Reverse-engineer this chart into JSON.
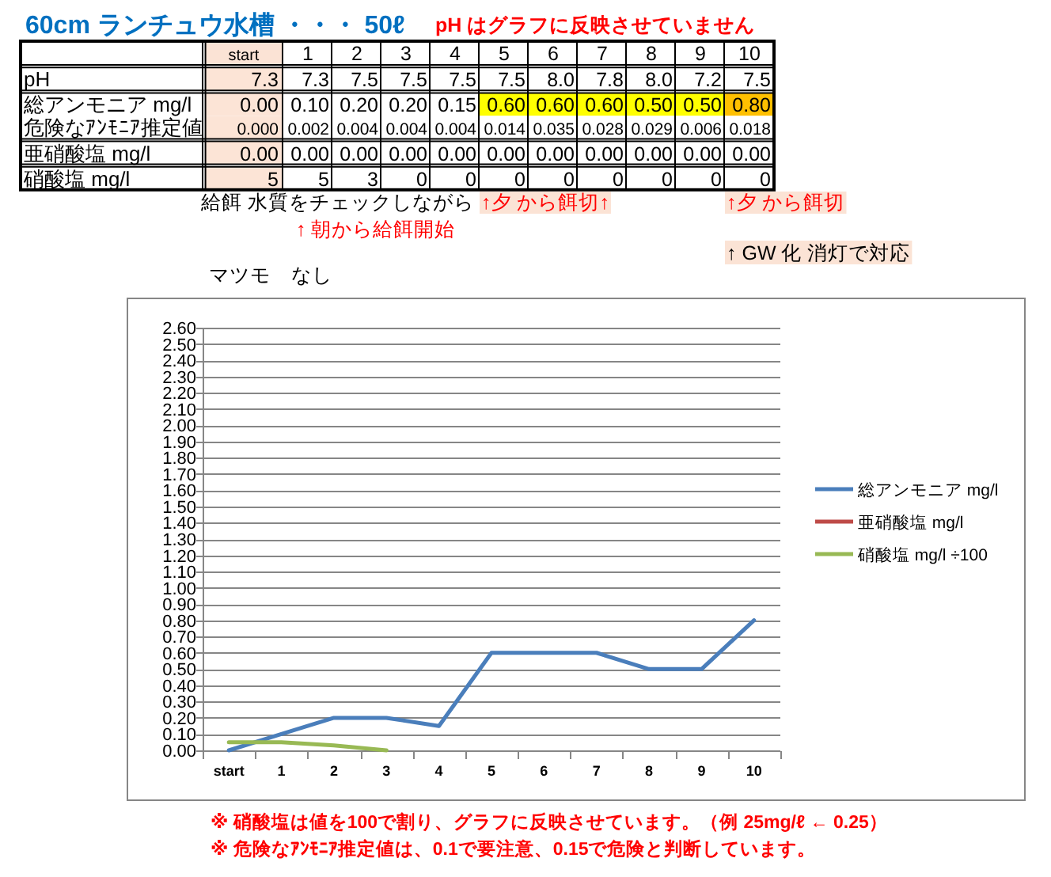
{
  "chart_data": [
    {
      "type": "heatmap",
      "title": "60cm ランチュウ水槽 ・・・ 50ℓ",
      "categories": [
        "start",
        "1",
        "2",
        "3",
        "4",
        "5",
        "6",
        "7",
        "8",
        "9",
        "10"
      ],
      "y_categories": [
        "pH",
        "総アンモニア mg/l",
        "危険なｱﾝﾓﾆｱ推定値",
        "亜硝酸塩 mg/l",
        "硝酸塩 mg/l"
      ],
      "cells": [
        [
          7.3,
          7.3,
          7.5,
          7.5,
          7.5,
          7.5,
          8.0,
          7.8,
          8.0,
          7.2,
          7.5
        ],
        [
          0,
          0.1,
          0.2,
          0.2,
          0.15,
          0.6,
          0.6,
          0.6,
          0.5,
          0.5,
          0.8
        ],
        [
          0,
          0.002,
          0.004,
          0.004,
          0.004,
          0.014,
          0.035,
          0.028,
          0.029,
          0.006,
          0.018
        ],
        [
          0,
          0,
          0,
          0,
          0,
          0,
          0,
          0,
          0,
          0,
          0
        ],
        [
          5,
          5,
          3,
          0,
          0,
          0,
          0,
          0,
          0,
          0,
          0
        ]
      ],
      "cell_labels": [
        [
          "7.3",
          "7.3",
          "7.5",
          "7.5",
          "7.5",
          "7.5",
          "8.0",
          "7.8",
          "8.0",
          "7.2",
          "7.5"
        ],
        [
          "0.00",
          "0.10",
          "0.20",
          "0.20",
          "0.15",
          "0.60",
          "0.60",
          "0.60",
          "0.50",
          "0.50",
          "0.80"
        ],
        [
          "0.000",
          "0.002",
          "0.004",
          "0.004",
          "0.004",
          "0.014",
          "0.035",
          "0.028",
          "0.029",
          "0.006",
          "0.018"
        ],
        [
          "0.00",
          "0.00",
          "0.00",
          "0.00",
          "0.00",
          "0.00",
          "0.00",
          "0.00",
          "0.00",
          "0.00",
          "0.00"
        ],
        [
          "5",
          "5",
          "3",
          "0",
          "0",
          "0",
          "0",
          "0",
          "0",
          "0",
          "0"
        ]
      ],
      "colors": [
        [
          "#fce4d6",
          "#ffffff",
          "#ffffff",
          "#ffffff",
          "#ffffff",
          "#ffffff",
          "#ffffff",
          "#ffffff",
          "#ffffff",
          "#ffffff",
          "#ffffff"
        ],
        [
          "#fce4d6",
          "#ffffff",
          "#ffffff",
          "#ffffff",
          "#ffffff",
          "#ffff00",
          "#ffff00",
          "#ffff00",
          "#ffff00",
          "#ffff00",
          "#ffc000"
        ],
        [
          "#fce4d6",
          "#ffffff",
          "#ffffff",
          "#ffffff",
          "#ffffff",
          "#ffffff",
          "#ffffff",
          "#ffffff",
          "#ffffff",
          "#ffffff",
          "#ffffff"
        ],
        [
          "#fce4d6",
          "#ffffff",
          "#ffffff",
          "#ffffff",
          "#ffffff",
          "#ffffff",
          "#ffffff",
          "#ffffff",
          "#ffffff",
          "#ffffff",
          "#ffffff"
        ],
        [
          "#fce4d6",
          "#ffffff",
          "#ffffff",
          "#ffffff",
          "#ffffff",
          "#ffffff",
          "#ffffff",
          "#ffffff",
          "#ffffff",
          "#ffffff",
          "#ffffff"
        ]
      ],
      "annotations": [
        "pH はグラフに反映させていません",
        "給餌 水質をチェックしながら",
        "↑夕 から餌切↑",
        "↑夕 から餌切",
        "↑ 朝から給餌開始",
        "↑ GW 化 消灯で対応",
        "マツモ　なし"
      ]
    },
    {
      "type": "line",
      "categories": [
        "start",
        "1",
        "2",
        "3",
        "4",
        "5",
        "6",
        "7",
        "8",
        "9",
        "10"
      ],
      "series": [
        {
          "name": "総アンモニア mg/l",
          "color": "#4a7ebb",
          "values": [
            0,
            0.1,
            0.2,
            0.2,
            0.15,
            0.6,
            0.6,
            0.6,
            0.5,
            0.5,
            0.8
          ]
        },
        {
          "name": "亜硝酸塩 mg/l",
          "color": "#be4b48",
          "values": [
            null,
            null,
            null,
            null,
            null,
            null,
            null,
            null,
            null,
            null,
            null
          ]
        },
        {
          "name": "硝酸塩 mg/l ÷100",
          "color": "#98b954",
          "values": [
            0.05,
            0.05,
            0.03,
            0,
            null,
            null,
            null,
            null,
            null,
            null,
            null
          ]
        }
      ],
      "ylim": [
        0,
        2.6
      ],
      "yticks": [
        {
          "value": 0,
          "label": "0.00"
        },
        {
          "value": 0.1,
          "label": "0.10"
        },
        {
          "value": 0.2,
          "label": "0.20"
        },
        {
          "value": 0.3,
          "label": "0.30"
        },
        {
          "value": 0.4,
          "label": "0.40"
        },
        {
          "value": 0.5,
          "label": "0.50"
        },
        {
          "value": 0.6,
          "label": "0.60"
        },
        {
          "value": 0.7,
          "label": "0.70"
        },
        {
          "value": 0.8,
          "label": "0.80"
        },
        {
          "value": 0.9,
          "label": "0.90"
        },
        {
          "value": 1.0,
          "label": "1.00"
        },
        {
          "value": 1.1,
          "label": "1.10"
        },
        {
          "value": 1.2,
          "label": "1.20"
        },
        {
          "value": 1.3,
          "label": "1.30"
        },
        {
          "value": 1.4,
          "label": "1.40"
        },
        {
          "value": 1.5,
          "label": "1.50"
        },
        {
          "value": 1.6,
          "label": "1.60"
        },
        {
          "value": 1.7,
          "label": "1.70"
        },
        {
          "value": 1.8,
          "label": "1.80"
        },
        {
          "value": 1.9,
          "label": "1.90"
        },
        {
          "value": 2.0,
          "label": "2.00"
        },
        {
          "value": 2.1,
          "label": "2.10"
        },
        {
          "value": 2.2,
          "label": "2.20"
        },
        {
          "value": 2.3,
          "label": "2.30"
        },
        {
          "value": 2.4,
          "label": "2.40"
        },
        {
          "value": 2.5,
          "label": "2.50"
        },
        {
          "value": 2.6,
          "label": "2.60"
        }
      ],
      "grid": "y",
      "legend": "right",
      "annotations": [
        "※ 硝酸塩は値を100で割り、グラフに反映させています。（例 25mg/ℓ ← 0.25）",
        "※ 危険なｱﾝﾓﾆｱ推定値は、0.1で要注意、0.15で危険と判断しています。"
      ]
    }
  ]
}
